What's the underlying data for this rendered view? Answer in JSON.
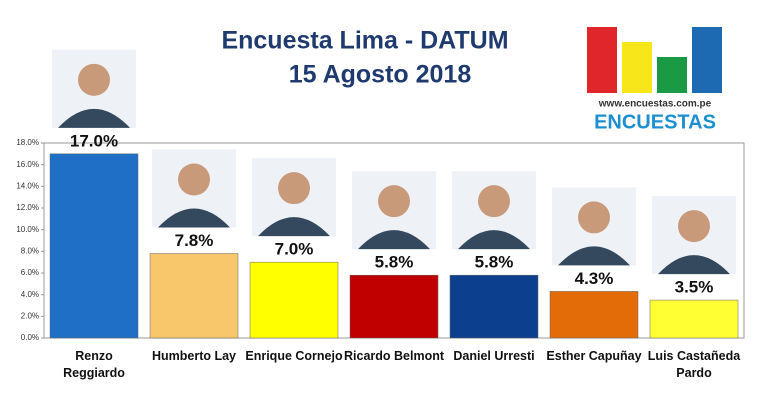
{
  "chart_data": {
    "type": "bar",
    "title": "Encuesta Lima - DATUM",
    "subtitle": "15 Agosto 2018",
    "logo_url": "www.encuestas.com.pe",
    "logo_name": "ENCUESTAS",
    "categories": [
      "Renzo Reggiardo",
      "Humberto Lay",
      "Enrique Cornejo",
      "Ricardo Belmont",
      "Daniel Urresti",
      "Esther Capuñay",
      "Luis Castañeda Pardo"
    ],
    "values": [
      17.0,
      7.8,
      7.0,
      5.8,
      5.8,
      4.3,
      3.5
    ],
    "value_labels": [
      "17.0%",
      "7.8%",
      "7.0%",
      "5.8%",
      "5.8%",
      "4.3%",
      "3.5%"
    ],
    "colors": [
      "#1f6fc6",
      "#f9c76b",
      "#ffff00",
      "#c00000",
      "#0d3f8f",
      "#e36c09",
      "#ffff33"
    ],
    "ylim": [
      0,
      18
    ],
    "yticks": [
      {
        "value": 0,
        "label": "0.0%"
      },
      {
        "value": 2,
        "label": "2.0%"
      },
      {
        "value": 4,
        "label": "4.0%"
      },
      {
        "value": 6,
        "label": "6.0%"
      },
      {
        "value": 8,
        "label": "8.0%"
      },
      {
        "value": 10,
        "label": "10.0%"
      },
      {
        "value": 12,
        "label": "12.0%"
      },
      {
        "value": 14,
        "label": "14.0%"
      },
      {
        "value": 16,
        "label": "16.0%"
      },
      {
        "value": 18,
        "label": "18.0%"
      }
    ]
  }
}
